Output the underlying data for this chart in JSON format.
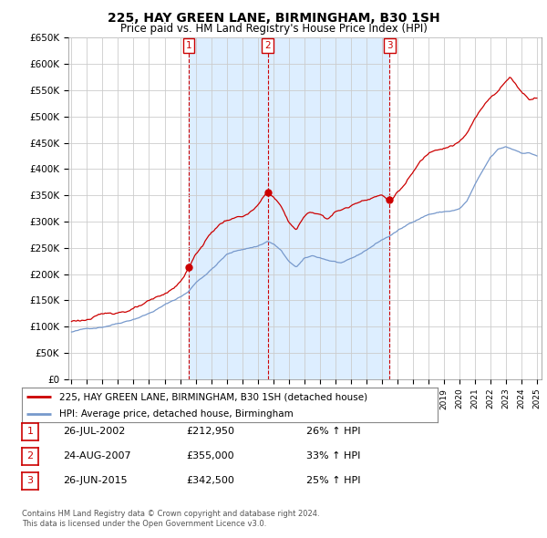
{
  "title": "225, HAY GREEN LANE, BIRMINGHAM, B30 1SH",
  "subtitle": "Price paid vs. HM Land Registry's House Price Index (HPI)",
  "ylabel_ticks": [
    "£0",
    "£50K",
    "£100K",
    "£150K",
    "£200K",
    "£250K",
    "£300K",
    "£350K",
    "£400K",
    "£450K",
    "£500K",
    "£550K",
    "£600K",
    "£650K"
  ],
  "ytick_values": [
    0,
    50000,
    100000,
    150000,
    200000,
    250000,
    300000,
    350000,
    400000,
    450000,
    500000,
    550000,
    600000,
    650000
  ],
  "background_color": "#ffffff",
  "grid_color": "#cccccc",
  "hpi_color": "#7799cc",
  "price_color": "#cc0000",
  "shade_color": "#ddeeff",
  "purchases": [
    {
      "label": "1",
      "date_str": "26-JUL-2002",
      "price": 212950,
      "pct": "26% ↑ HPI",
      "x": 2002.56
    },
    {
      "label": "2",
      "date_str": "24-AUG-2007",
      "price": 355000,
      "pct": "33% ↑ HPI",
      "x": 2007.65
    },
    {
      "label": "3",
      "date_str": "26-JUN-2015",
      "price": 342500,
      "pct": "25% ↑ HPI",
      "x": 2015.49
    }
  ],
  "legend_entries": [
    {
      "label": "225, HAY GREEN LANE, BIRMINGHAM, B30 1SH (detached house)",
      "color": "#cc0000"
    },
    {
      "label": "HPI: Average price, detached house, Birmingham",
      "color": "#7799cc"
    }
  ],
  "footer1": "Contains HM Land Registry data © Crown copyright and database right 2024.",
  "footer2": "This data is licensed under the Open Government Licence v3.0.",
  "xmin": 1994.8,
  "xmax": 2025.3,
  "ymin": 0,
  "ymax": 650000
}
